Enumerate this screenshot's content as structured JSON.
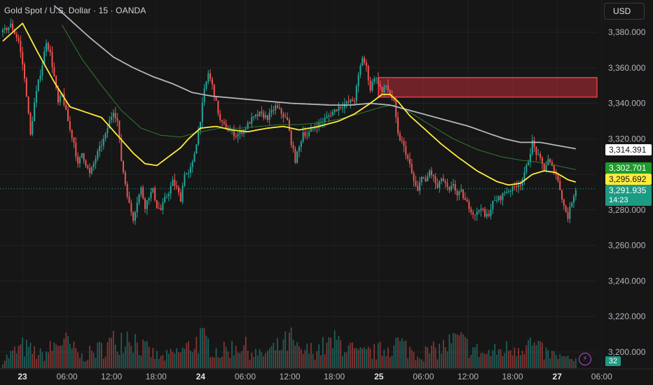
{
  "header": {
    "title": "Gold Spot / U.S. Dollar · 15 · OANDA",
    "currency_button": "USD"
  },
  "price_labels": {
    "sma_white": "3,314.391",
    "ema_green": "3,302.701",
    "ema_yellow": "3,295.692",
    "last_price": "3,291.935",
    "countdown": "14:23",
    "volume": "32"
  },
  "icons": {
    "bolt": "lightning-bolt-icon"
  },
  "colors": {
    "background": "#161616",
    "up": "#26a69a",
    "down": "#ef5350",
    "sma_white": "#b2b5be",
    "ema_yellow": "#ffeb3b",
    "ema_green": "#2e7d32",
    "zone": "#f23645"
  },
  "chart_data": {
    "type": "candlestick",
    "title": "Gold Spot / U.S. Dollar · 15 · OANDA",
    "y_ticks": [
      3380,
      3360,
      3340,
      3320,
      3300,
      3280,
      3260,
      3240,
      3220,
      3200
    ],
    "y_tick_labels": [
      "3,380.000",
      "3,360.000",
      "3,340.000",
      "3,320.000",
      "3,300.000",
      "3,280.000",
      "3,260.000",
      "3,240.000",
      "3,220.000",
      "3,200.000"
    ],
    "ylim": [
      3193,
      3395
    ],
    "x_tick_labels": [
      "23",
      "06:00",
      "12:00",
      "18:00",
      "24",
      "06:00",
      "12:00",
      "18:00",
      "25",
      "06:00",
      "12:00",
      "18:00",
      "27",
      "06:00"
    ],
    "x_tick_bold": [
      true,
      false,
      false,
      false,
      true,
      false,
      false,
      false,
      true,
      false,
      false,
      false,
      true,
      false
    ],
    "last_price": 3291.935,
    "resistance_zone": {
      "from": 3343.5,
      "to": 3354.5
    },
    "price_anchors": [
      [
        0,
        3380
      ],
      [
        4,
        3384
      ],
      [
        8,
        3375
      ],
      [
        10,
        3362
      ],
      [
        12,
        3345
      ],
      [
        14,
        3322
      ],
      [
        16,
        3340
      ],
      [
        18,
        3352
      ],
      [
        20,
        3362
      ],
      [
        22,
        3375
      ],
      [
        24,
        3368
      ],
      [
        26,
        3355
      ],
      [
        28,
        3340
      ],
      [
        30,
        3345
      ],
      [
        32,
        3335
      ],
      [
        34,
        3325
      ],
      [
        36,
        3318
      ],
      [
        38,
        3305
      ],
      [
        40,
        3312
      ],
      [
        44,
        3300
      ],
      [
        48,
        3312
      ],
      [
        52,
        3322
      ],
      [
        54,
        3330
      ],
      [
        56,
        3336
      ],
      [
        58,
        3330
      ],
      [
        60,
        3308
      ],
      [
        62,
        3295
      ],
      [
        64,
        3283
      ],
      [
        66,
        3275
      ],
      [
        68,
        3285
      ],
      [
        70,
        3292
      ],
      [
        72,
        3282
      ],
      [
        74,
        3288
      ],
      [
        76,
        3291
      ],
      [
        78,
        3282
      ],
      [
        80,
        3280
      ],
      [
        82,
        3286
      ],
      [
        84,
        3290
      ],
      [
        86,
        3296
      ],
      [
        88,
        3292
      ],
      [
        90,
        3286
      ],
      [
        92,
        3301
      ],
      [
        94,
        3300
      ],
      [
        96,
        3306
      ],
      [
        98,
        3318
      ],
      [
        100,
        3331
      ],
      [
        102,
        3347
      ],
      [
        104,
        3357
      ],
      [
        106,
        3350
      ],
      [
        108,
        3340
      ],
      [
        110,
        3330
      ],
      [
        114,
        3325
      ],
      [
        118,
        3322
      ],
      [
        122,
        3325
      ],
      [
        126,
        3331
      ],
      [
        130,
        3334
      ],
      [
        134,
        3332
      ],
      [
        138,
        3338
      ],
      [
        140,
        3336
      ],
      [
        142,
        3333
      ],
      [
        144,
        3330
      ],
      [
        146,
        3318
      ],
      [
        148,
        3308
      ],
      [
        150,
        3315
      ],
      [
        152,
        3324
      ],
      [
        154,
        3322
      ],
      [
        158,
        3327
      ],
      [
        162,
        3330
      ],
      [
        166,
        3334
      ],
      [
        170,
        3338
      ],
      [
        174,
        3340
      ],
      [
        178,
        3342
      ],
      [
        180,
        3355
      ],
      [
        182,
        3366
      ],
      [
        184,
        3360
      ],
      [
        186,
        3348
      ],
      [
        188,
        3355
      ],
      [
        190,
        3352
      ],
      [
        192,
        3346
      ],
      [
        194,
        3350
      ],
      [
        196,
        3345
      ],
      [
        198,
        3340
      ],
      [
        200,
        3322
      ],
      [
        202,
        3318
      ],
      [
        204,
        3312
      ],
      [
        206,
        3305
      ],
      [
        208,
        3296
      ],
      [
        210,
        3290
      ],
      [
        212,
        3300
      ],
      [
        214,
        3295
      ],
      [
        216,
        3302
      ],
      [
        218,
        3298
      ],
      [
        220,
        3292
      ],
      [
        222,
        3298
      ],
      [
        224,
        3294
      ],
      [
        226,
        3290
      ],
      [
        228,
        3295
      ],
      [
        230,
        3288
      ],
      [
        232,
        3290
      ],
      [
        234,
        3285
      ],
      [
        236,
        3282
      ],
      [
        238,
        3278
      ],
      [
        240,
        3278
      ],
      [
        242,
        3282
      ],
      [
        244,
        3276
      ],
      [
        246,
        3278
      ],
      [
        248,
        3284
      ],
      [
        250,
        3286
      ],
      [
        252,
        3287
      ],
      [
        254,
        3290
      ],
      [
        256,
        3291
      ],
      [
        258,
        3292
      ],
      [
        260,
        3294
      ],
      [
        262,
        3295
      ],
      [
        264,
        3300
      ],
      [
        266,
        3308
      ],
      [
        268,
        3318
      ],
      [
        270,
        3312
      ],
      [
        272,
        3308
      ],
      [
        274,
        3303
      ],
      [
        276,
        3308
      ],
      [
        278,
        3304
      ],
      [
        280,
        3300
      ],
      [
        282,
        3292
      ],
      [
        284,
        3282
      ],
      [
        286,
        3276
      ],
      [
        288,
        3285
      ],
      [
        290,
        3292
      ]
    ],
    "ema_yellow": [
      [
        0,
        3375
      ],
      [
        10,
        3385
      ],
      [
        18,
        3368
      ],
      [
        26,
        3352
      ],
      [
        34,
        3338
      ],
      [
        42,
        3335
      ],
      [
        50,
        3332
      ],
      [
        58,
        3322
      ],
      [
        66,
        3312
      ],
      [
        72,
        3306
      ],
      [
        78,
        3305
      ],
      [
        84,
        3310
      ],
      [
        90,
        3315
      ],
      [
        94,
        3320
      ],
      [
        100,
        3326
      ],
      [
        108,
        3327
      ],
      [
        116,
        3325
      ],
      [
        124,
        3324
      ],
      [
        134,
        3326
      ],
      [
        142,
        3327
      ],
      [
        150,
        3325
      ],
      [
        160,
        3327
      ],
      [
        170,
        3330
      ],
      [
        178,
        3334
      ],
      [
        186,
        3340
      ],
      [
        192,
        3345
      ],
      [
        196,
        3345
      ],
      [
        200,
        3341
      ],
      [
        206,
        3333
      ],
      [
        214,
        3325
      ],
      [
        222,
        3317
      ],
      [
        230,
        3310
      ],
      [
        240,
        3302
      ],
      [
        250,
        3296
      ],
      [
        256,
        3294
      ],
      [
        262,
        3295
      ],
      [
        268,
        3300
      ],
      [
        274,
        3302
      ],
      [
        280,
        3301
      ],
      [
        286,
        3297
      ],
      [
        290,
        3295.7
      ]
    ],
    "ema_green": [
      [
        30,
        3384
      ],
      [
        40,
        3365
      ],
      [
        50,
        3350
      ],
      [
        60,
        3336
      ],
      [
        70,
        3326
      ],
      [
        80,
        3322
      ],
      [
        90,
        3321
      ],
      [
        100,
        3324
      ],
      [
        110,
        3326
      ],
      [
        120,
        3326
      ],
      [
        130,
        3327
      ],
      [
        140,
        3328
      ],
      [
        150,
        3328
      ],
      [
        160,
        3329
      ],
      [
        170,
        3331
      ],
      [
        180,
        3334
      ],
      [
        186,
        3336
      ],
      [
        192,
        3338
      ],
      [
        198,
        3339
      ],
      [
        206,
        3335
      ],
      [
        216,
        3328
      ],
      [
        228,
        3320
      ],
      [
        240,
        3314
      ],
      [
        252,
        3310
      ],
      [
        262,
        3308
      ],
      [
        270,
        3307
      ],
      [
        280,
        3305
      ],
      [
        290,
        3302.7
      ]
    ],
    "sma_white": [
      [
        26,
        3395
      ],
      [
        34,
        3387
      ],
      [
        44,
        3377
      ],
      [
        56,
        3366
      ],
      [
        66,
        3360
      ],
      [
        76,
        3355
      ],
      [
        86,
        3351
      ],
      [
        96,
        3346
      ],
      [
        106,
        3344
      ],
      [
        116,
        3343
      ],
      [
        126,
        3342
      ],
      [
        136,
        3341
      ],
      [
        146,
        3340
      ],
      [
        156,
        3339.5
      ],
      [
        166,
        3339
      ],
      [
        176,
        3339
      ],
      [
        186,
        3340
      ],
      [
        196,
        3339
      ],
      [
        206,
        3336
      ],
      [
        216,
        3333
      ],
      [
        226,
        3330
      ],
      [
        236,
        3327
      ],
      [
        246,
        3323
      ],
      [
        254,
        3320
      ],
      [
        262,
        3318
      ],
      [
        272,
        3318
      ],
      [
        282,
        3316
      ],
      [
        290,
        3314.4
      ]
    ],
    "volume_anchors": [
      [
        0,
        12
      ],
      [
        10,
        30
      ],
      [
        20,
        18
      ],
      [
        30,
        40
      ],
      [
        40,
        16
      ],
      [
        50,
        28
      ],
      [
        60,
        44
      ],
      [
        64,
        50
      ],
      [
        70,
        30
      ],
      [
        80,
        14
      ],
      [
        92,
        26
      ],
      [
        100,
        42
      ],
      [
        110,
        22
      ],
      [
        120,
        34
      ],
      [
        130,
        18
      ],
      [
        140,
        30
      ],
      [
        146,
        40
      ],
      [
        150,
        22
      ],
      [
        160,
        28
      ],
      [
        170,
        38
      ],
      [
        180,
        20
      ],
      [
        190,
        24
      ],
      [
        200,
        36
      ],
      [
        210,
        20
      ],
      [
        220,
        26
      ],
      [
        230,
        40
      ],
      [
        236,
        30
      ],
      [
        244,
        20
      ],
      [
        256,
        28
      ],
      [
        266,
        36
      ],
      [
        274,
        22
      ],
      [
        282,
        16
      ],
      [
        290,
        10
      ]
    ]
  }
}
